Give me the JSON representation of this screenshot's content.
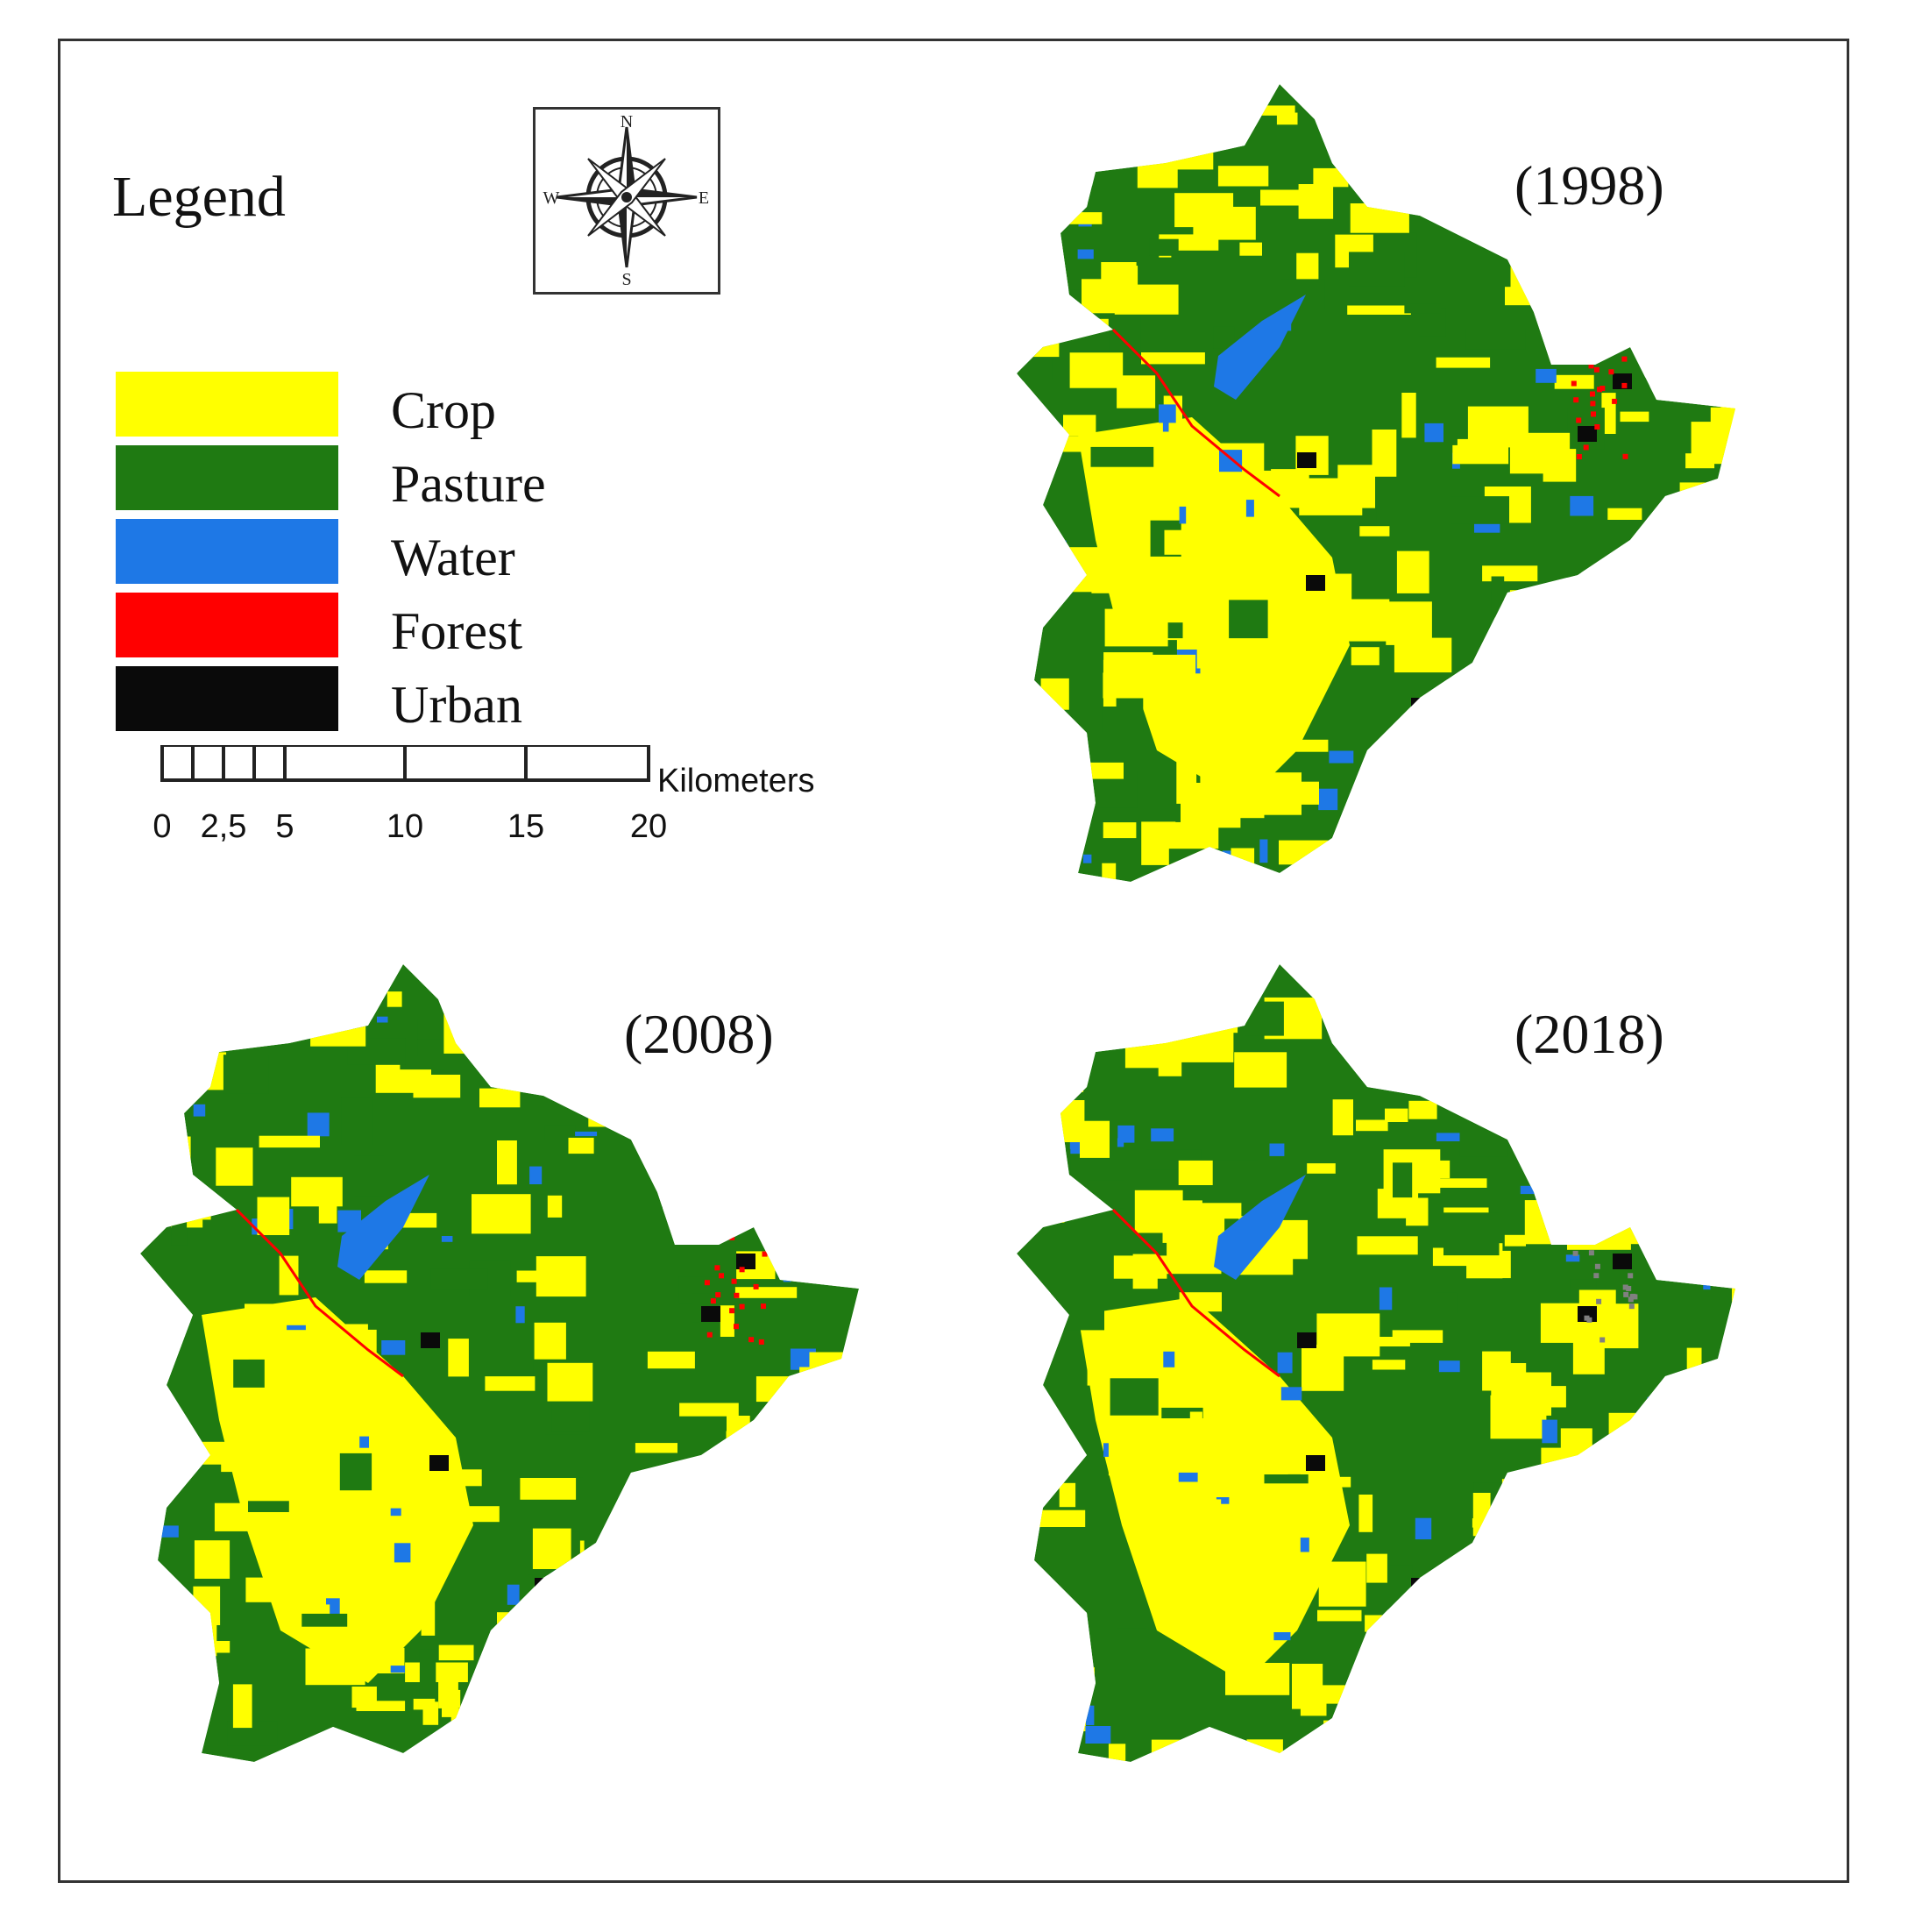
{
  "legend": {
    "title": "Legend",
    "classes": [
      {
        "label": "Crop",
        "color": "#FFFF00"
      },
      {
        "label": "Pasture",
        "color": "#1F7A12"
      },
      {
        "label": "Water",
        "color": "#1E78E6"
      },
      {
        "label": "Forest",
        "color": "#FF0000"
      },
      {
        "label": "Urban",
        "color": "#0A0A0A"
      }
    ]
  },
  "compass": {
    "icon": "compass-rose-icon",
    "north": "N",
    "south": "S",
    "east": "E",
    "west": "W"
  },
  "scale_bar": {
    "unit": "Kilometers",
    "ticks": [
      "0",
      "2,5",
      "5",
      "10",
      "15",
      "20"
    ]
  },
  "maps": [
    {
      "year_label": "(1998)"
    },
    {
      "year_label": "(2008)"
    },
    {
      "year_label": "(2018)"
    }
  ]
}
